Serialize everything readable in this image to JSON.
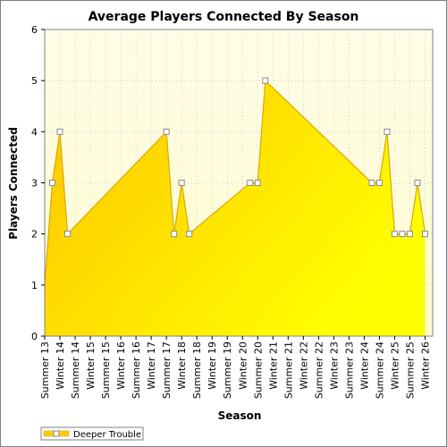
{
  "chart_data": {
    "type": "area",
    "title": "Average Players Connected By Season",
    "xlabel": "Season",
    "ylabel": "Players Connected",
    "ylim": [
      0,
      6
    ],
    "yticks": [
      0,
      1,
      2,
      3,
      4,
      5,
      6
    ],
    "grid": true,
    "legend_position": "bottom-left",
    "categories": [
      "Summer 13",
      "Winter 14",
      "Summer 14",
      "Winter 15",
      "Summer 15",
      "Winter 16",
      "Summer 16",
      "Winter 17",
      "Summer 17",
      "Winter 18",
      "Summer 18",
      "Winter 19",
      "Summer 19",
      "Winter 20",
      "Summer 20",
      "Winter 21",
      "Summer 21",
      "Winter 22",
      "Summer 22",
      "Winter 23",
      "Summer 23",
      "Winter 24",
      "Summer 24",
      "Winter 25",
      "Summer 25",
      "Winter 26"
    ],
    "series": [
      {
        "name": "Deeper Trouble",
        "color": "#ffcc00",
        "points": [
          {
            "x": 0.0,
            "y": 1
          },
          {
            "x": 0.5,
            "y": 3
          },
          {
            "x": 1.0,
            "y": 4
          },
          {
            "x": 1.5,
            "y": 2
          },
          {
            "x": 8.0,
            "y": 4
          },
          {
            "x": 8.5,
            "y": 2
          },
          {
            "x": 9.0,
            "y": 3
          },
          {
            "x": 9.5,
            "y": 2
          },
          {
            "x": 13.5,
            "y": 3
          },
          {
            "x": 14.0,
            "y": 3
          },
          {
            "x": 14.5,
            "y": 5
          },
          {
            "x": 21.5,
            "y": 3
          },
          {
            "x": 22.0,
            "y": 3
          },
          {
            "x": 22.5,
            "y": 4
          },
          {
            "x": 23.0,
            "y": 2
          },
          {
            "x": 23.5,
            "y": 2
          },
          {
            "x": 24.0,
            "y": 2
          },
          {
            "x": 24.5,
            "y": 3
          },
          {
            "x": 25.0,
            "y": 2
          }
        ]
      }
    ]
  }
}
